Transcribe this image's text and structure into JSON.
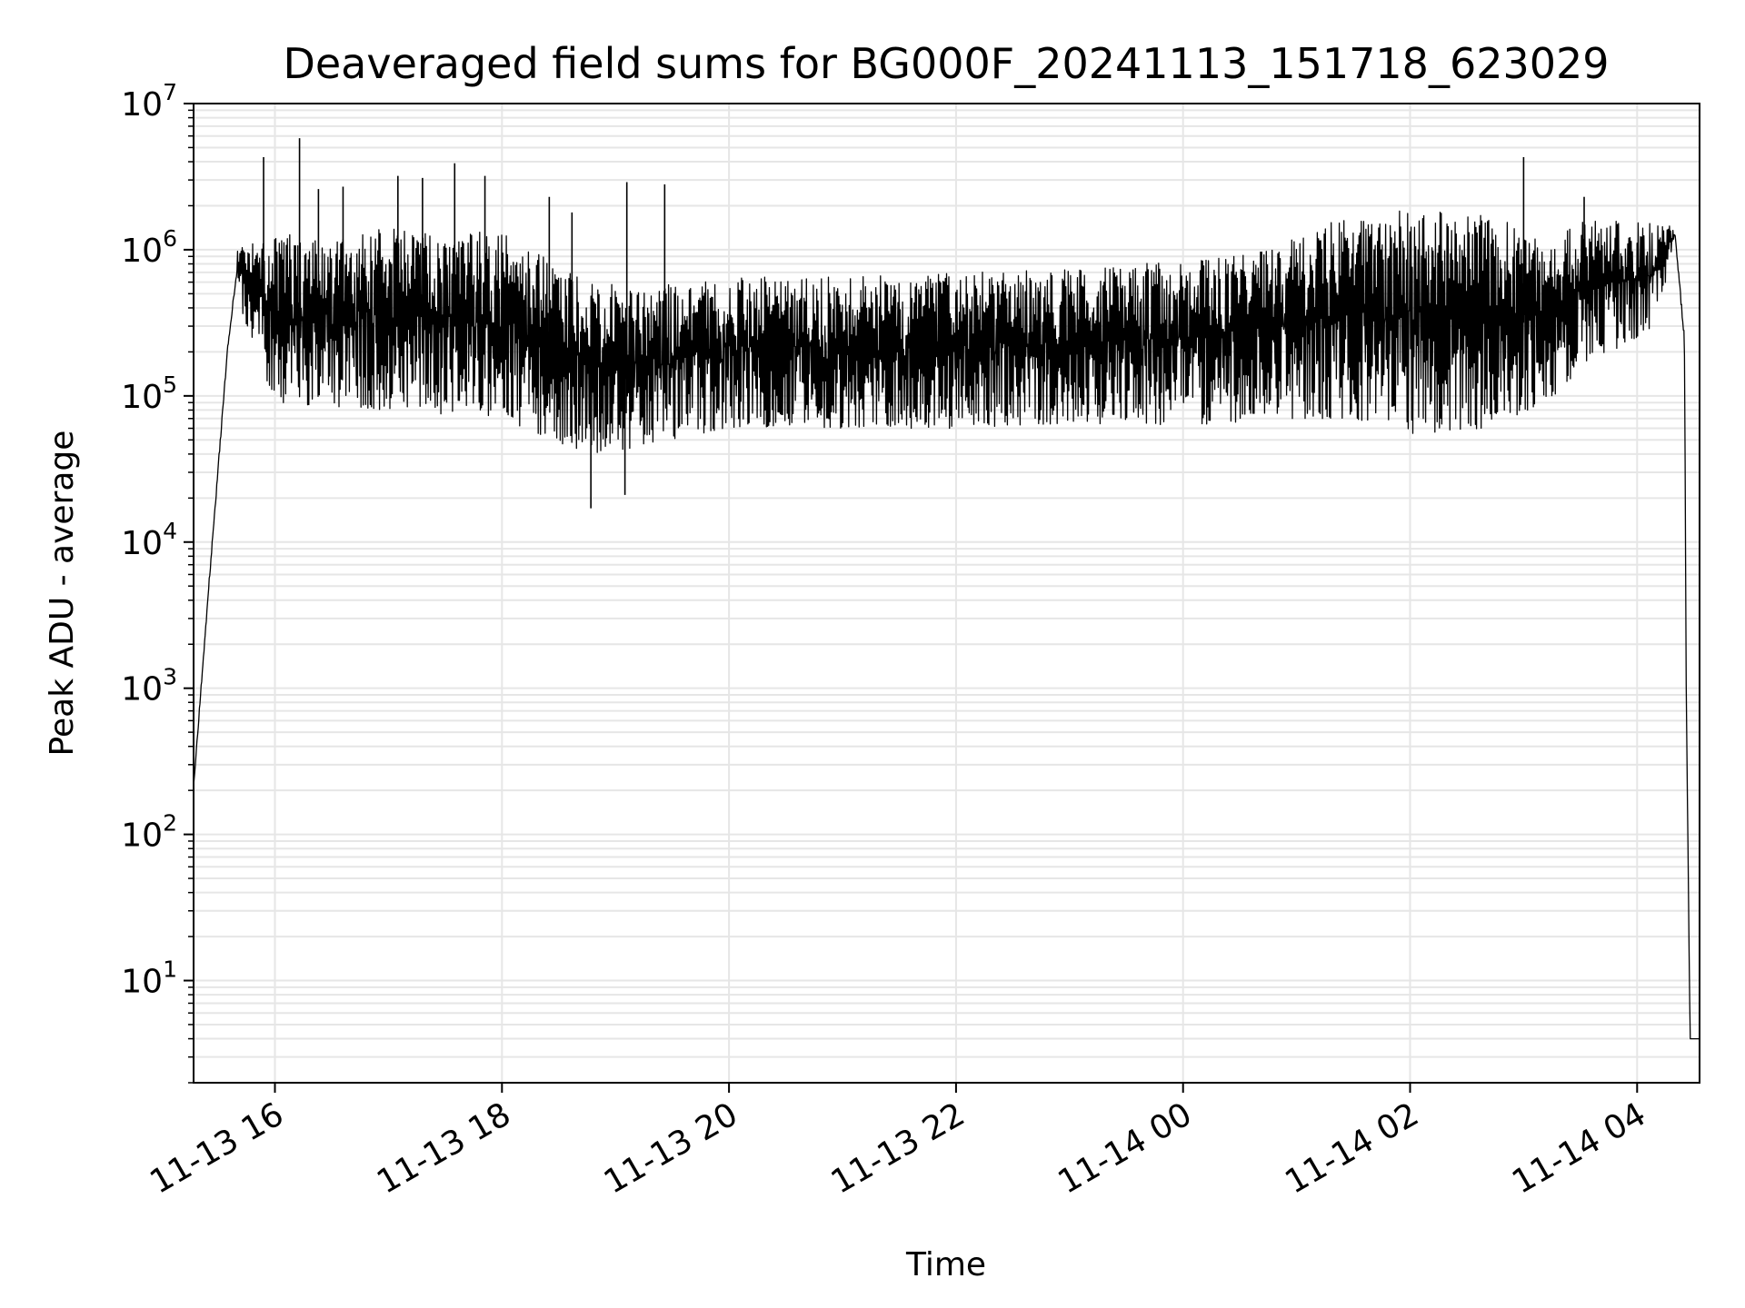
{
  "chart_data": {
    "type": "line",
    "title": "Deaveraged field sums for BG000F_20241113_151718_623029",
    "xlabel": "Time",
    "ylabel": "Peak ADU - average",
    "y_scale": "log",
    "grid": true,
    "grid_minor": true,
    "xlim": [
      "2024-11-13 15:17",
      "2024-11-14 04:33"
    ],
    "ylim": [
      2,
      10000000
    ],
    "x_ticks": [
      {
        "label": "11-13 16",
        "value": "2024-11-13 16:00"
      },
      {
        "label": "11-13 18",
        "value": "2024-11-13 18:00"
      },
      {
        "label": "11-13 20",
        "value": "2024-11-13 20:00"
      },
      {
        "label": "11-13 22",
        "value": "2024-11-13 22:00"
      },
      {
        "label": "11-14 00",
        "value": "2024-11-14 00:00"
      },
      {
        "label": "11-14 02",
        "value": "2024-11-14 02:00"
      },
      {
        "label": "11-14 04",
        "value": "2024-11-14 04:00"
      }
    ],
    "y_ticks": [
      {
        "base": "10",
        "exp": "1",
        "value": 10
      },
      {
        "base": "10",
        "exp": "2",
        "value": 100
      },
      {
        "base": "10",
        "exp": "3",
        "value": 1000
      },
      {
        "base": "10",
        "exp": "4",
        "value": 10000
      },
      {
        "base": "10",
        "exp": "5",
        "value": 100000
      },
      {
        "base": "10",
        "exp": "6",
        "value": 1000000
      },
      {
        "base": "10",
        "exp": "7",
        "value": 10000000
      }
    ],
    "line_color": "#000000",
    "grid_color": "#e6e6e6",
    "envelope": [
      {
        "x": "2024-11-13 15:17",
        "low": 150,
        "high": 300
      },
      {
        "x": "2024-11-13 15:25",
        "low": 3000,
        "high": 8000
      },
      {
        "x": "2024-11-13 15:35",
        "low": 150000,
        "high": 300000
      },
      {
        "x": "2024-11-13 15:40",
        "low": 450000,
        "high": 1200000
      },
      {
        "x": "2024-11-13 16:00",
        "low": 90000,
        "high": 1300000
      },
      {
        "x": "2024-11-13 17:00",
        "low": 80000,
        "high": 1400000
      },
      {
        "x": "2024-11-13 18:00",
        "low": 70000,
        "high": 1300000
      },
      {
        "x": "2024-11-13 18:45",
        "low": 40000,
        "high": 600000
      },
      {
        "x": "2024-11-13 19:15",
        "low": 45000,
        "high": 550000
      },
      {
        "x": "2024-11-13 20:00",
        "low": 60000,
        "high": 650000
      },
      {
        "x": "2024-11-13 21:00",
        "low": 60000,
        "high": 650000
      },
      {
        "x": "2024-11-13 22:00",
        "low": 60000,
        "high": 700000
      },
      {
        "x": "2024-11-13 23:00",
        "low": 65000,
        "high": 750000
      },
      {
        "x": "2024-11-14 00:00",
        "low": 60000,
        "high": 850000
      },
      {
        "x": "2024-11-14 00:45",
        "low": 70000,
        "high": 1000000
      },
      {
        "x": "2024-11-14 01:20",
        "low": 70000,
        "high": 1600000
      },
      {
        "x": "2024-11-14 02:00",
        "low": 55000,
        "high": 1900000
      },
      {
        "x": "2024-11-14 02:45",
        "low": 60000,
        "high": 1700000
      },
      {
        "x": "2024-11-14 03:15",
        "low": 90000,
        "high": 1100000
      },
      {
        "x": "2024-11-14 03:30",
        "low": 150000,
        "high": 1600000
      },
      {
        "x": "2024-11-14 04:10",
        "low": 300000,
        "high": 1600000
      },
      {
        "x": "2024-11-14 04:20",
        "low": 1200000,
        "high": 1400000
      },
      {
        "x": "2024-11-14 04:25",
        "low": 100000,
        "high": 600000
      },
      {
        "x": "2024-11-14 04:26",
        "low": 700,
        "high": 1000
      },
      {
        "x": "2024-11-14 04:28",
        "low": 4,
        "high": 4
      },
      {
        "x": "2024-11-14 04:33",
        "low": 4,
        "high": 4
      }
    ],
    "spikes": [
      {
        "x": "2024-11-13 15:54",
        "y": 4300000
      },
      {
        "x": "2024-11-13 16:13",
        "y": 5800000
      },
      {
        "x": "2024-11-13 16:23",
        "y": 2600000
      },
      {
        "x": "2024-11-13 16:36",
        "y": 2700000
      },
      {
        "x": "2024-11-13 17:05",
        "y": 3200000
      },
      {
        "x": "2024-11-13 17:18",
        "y": 3100000
      },
      {
        "x": "2024-11-13 17:35",
        "y": 3900000
      },
      {
        "x": "2024-11-13 17:51",
        "y": 3200000
      },
      {
        "x": "2024-11-13 18:25",
        "y": 2300000
      },
      {
        "x": "2024-11-13 18:37",
        "y": 1800000
      },
      {
        "x": "2024-11-13 19:06",
        "y": 2900000
      },
      {
        "x": "2024-11-13 19:26",
        "y": 2800000
      },
      {
        "x": "2024-11-13 18:47",
        "y": 17000
      },
      {
        "x": "2024-11-13 19:05",
        "y": 21000
      },
      {
        "x": "2024-11-14 03:00",
        "y": 4300000
      },
      {
        "x": "2024-11-14 03:32",
        "y": 2300000
      }
    ]
  }
}
